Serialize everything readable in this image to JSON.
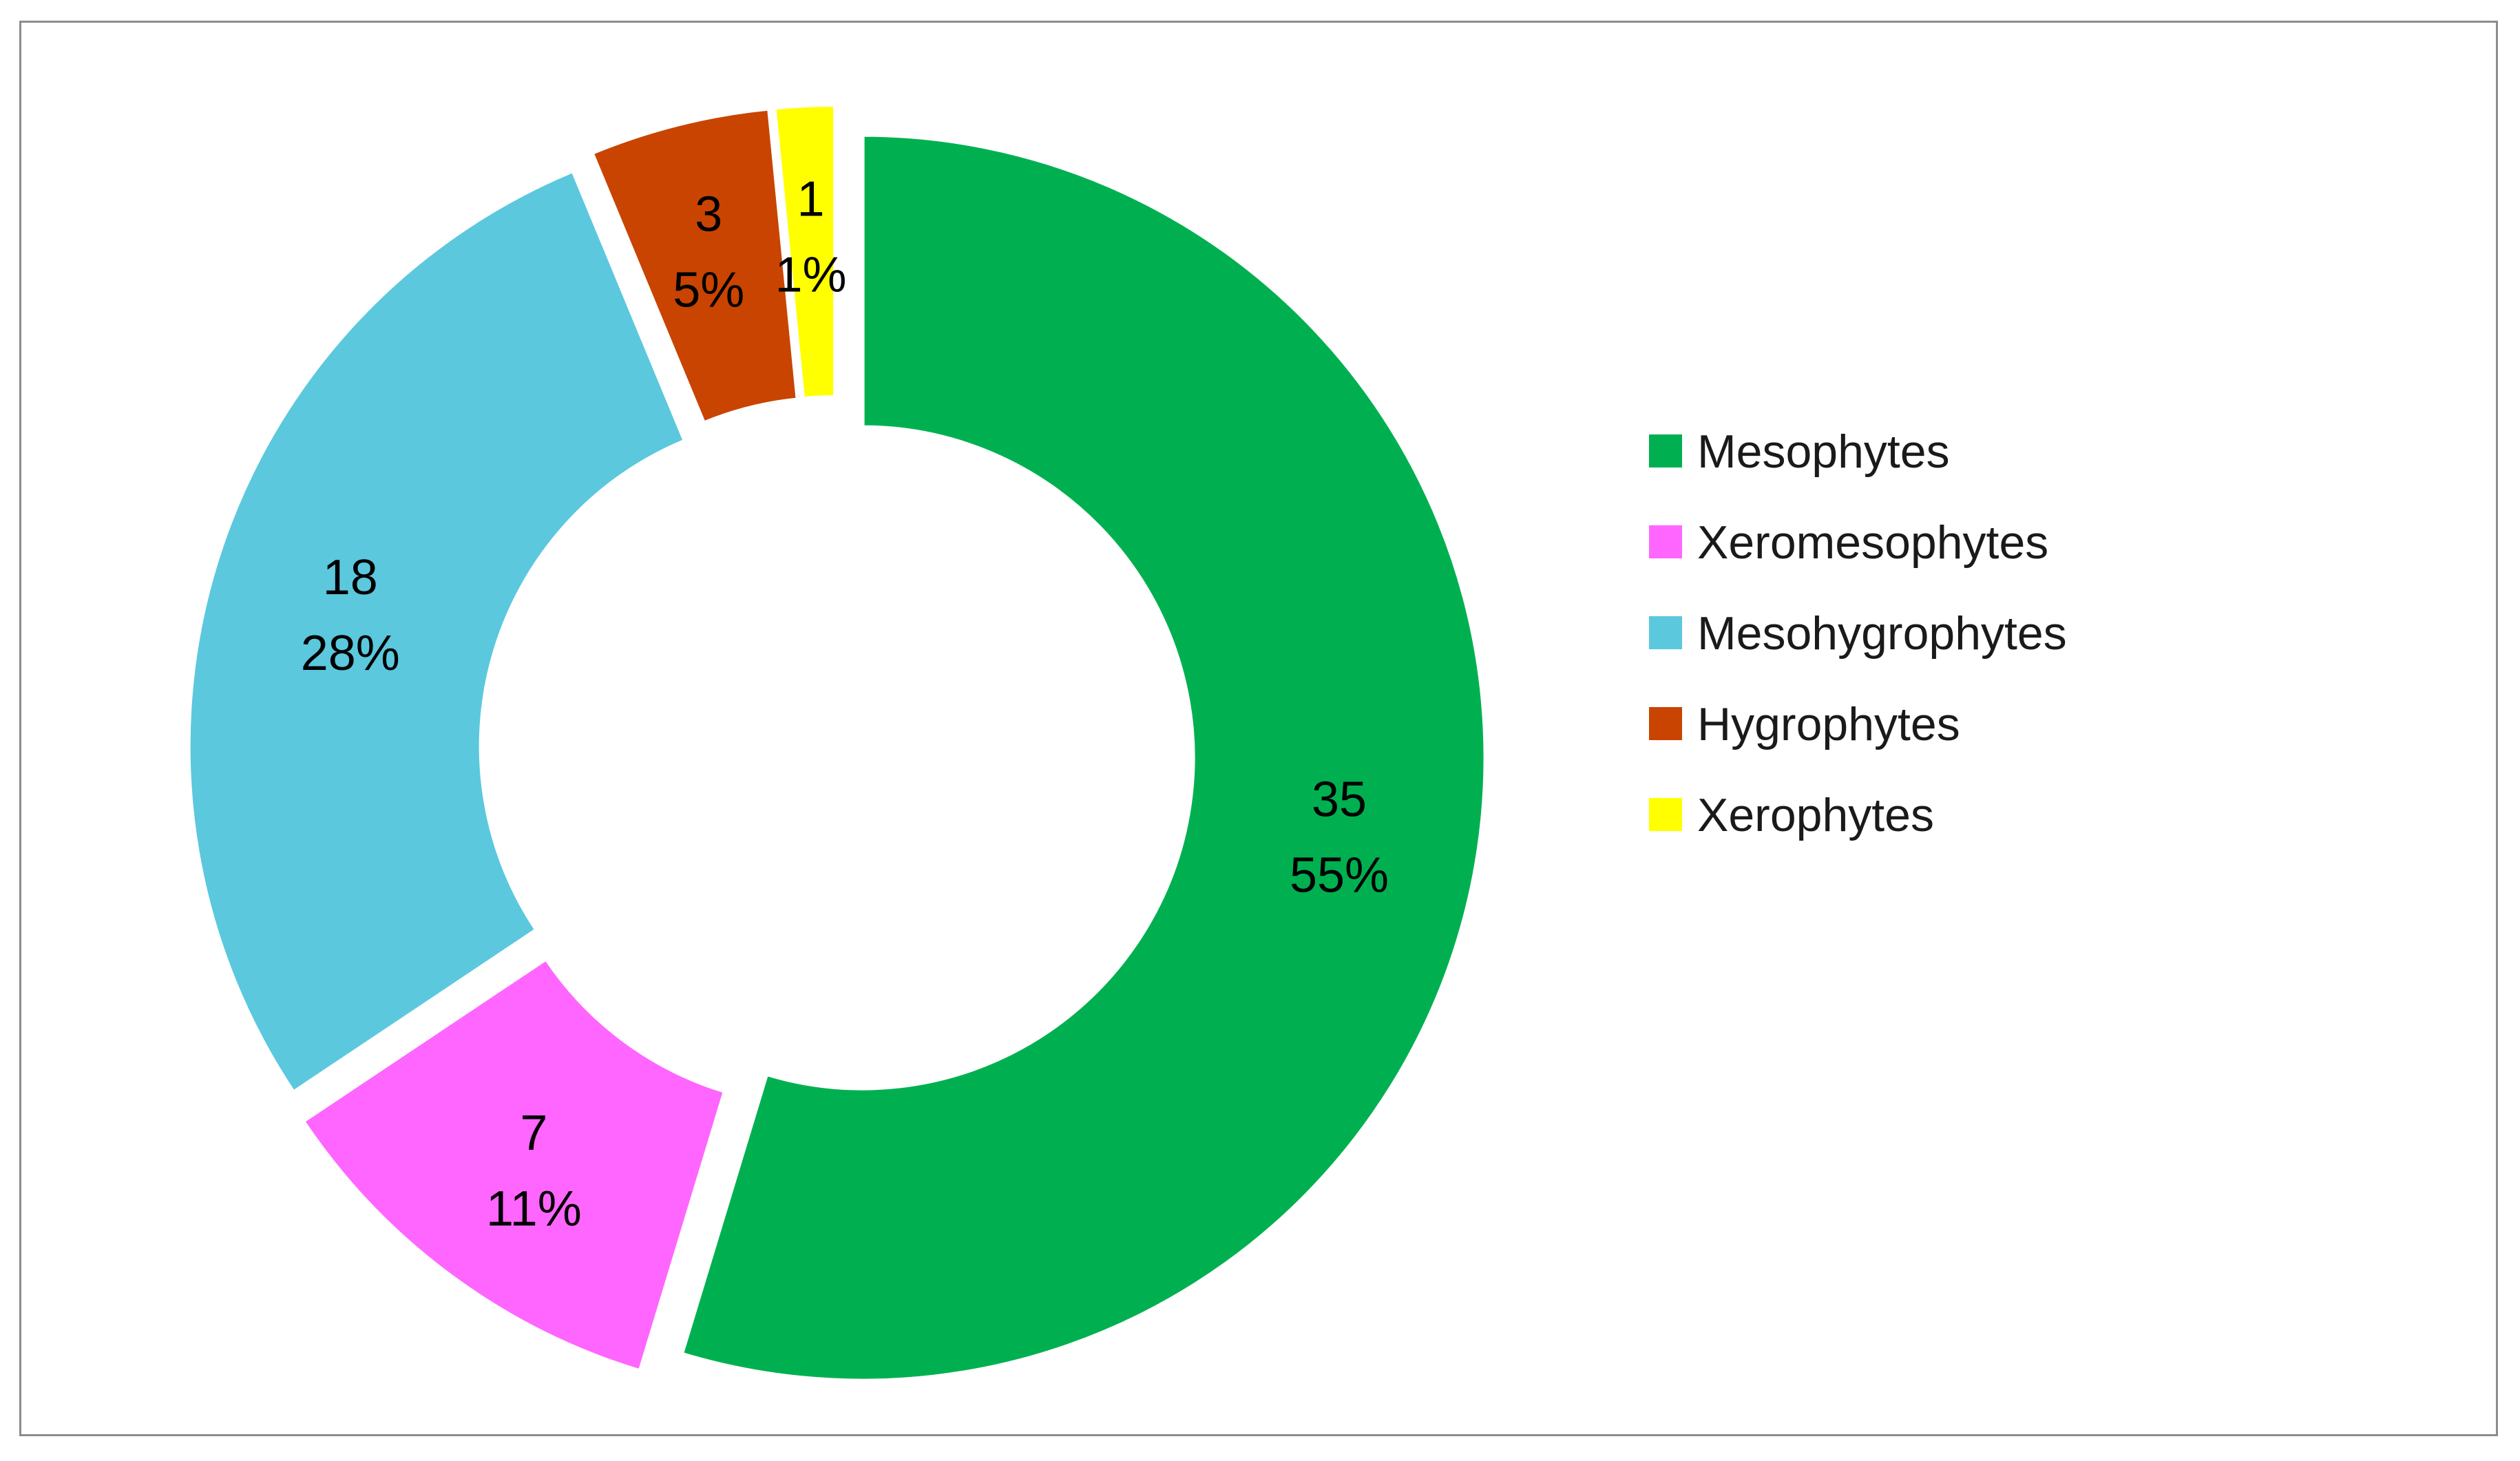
{
  "chart_data": {
    "type": "pie",
    "donut": true,
    "exploded": true,
    "categories": [
      "Mesophytes",
      "Xeromesophytes",
      "Mesohygrophytes",
      "Hygrophytes",
      "Xerophytes"
    ],
    "values": [
      35,
      7,
      18,
      3,
      1
    ],
    "percent_labels": [
      "55%",
      "11%",
      "28%",
      "5%",
      "1%"
    ],
    "colors": [
      "#00b050",
      "#ff66ff",
      "#5bc8de",
      "#c94400",
      "#ffff00"
    ],
    "legend_position": "right",
    "title": ""
  }
}
